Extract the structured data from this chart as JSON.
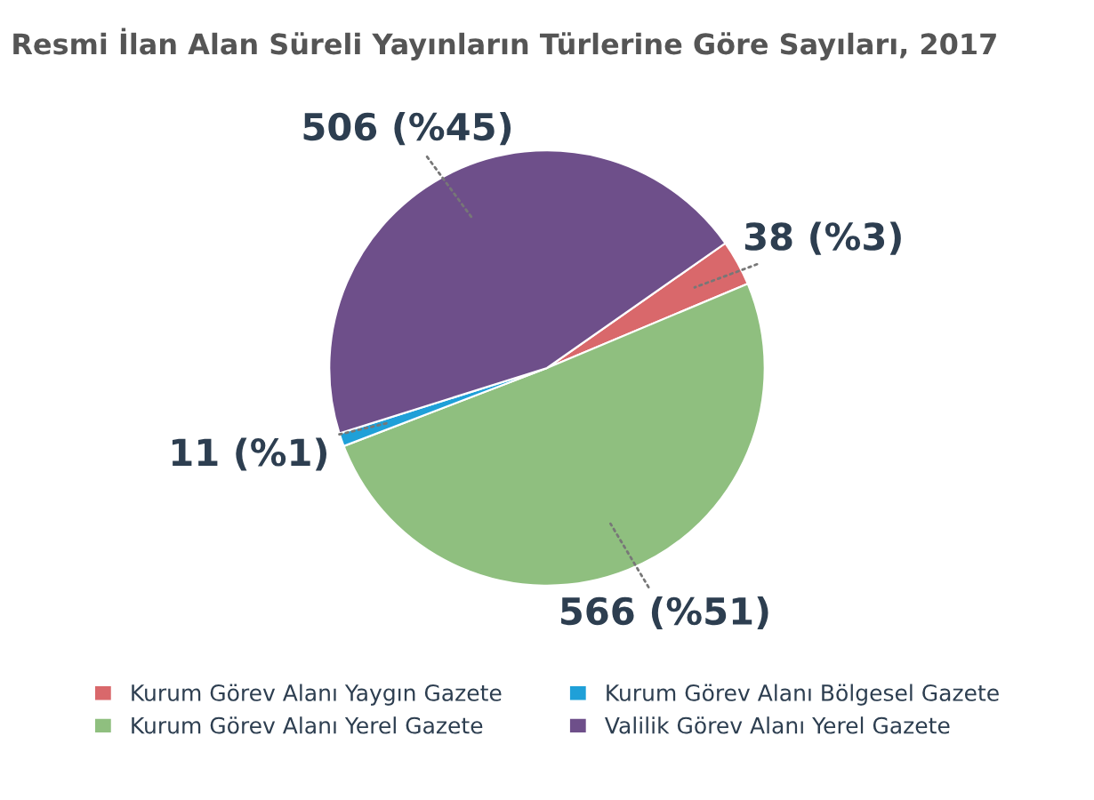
{
  "chart_data": {
    "type": "pie",
    "title": "Resmi İlan Alan Süreli Yayınların Türlerine Göre Sayıları, 2017",
    "categories": [
      "Kurum Görev Alanı Yaygın Gazete",
      "Kurum Görev Alanı Yerel Gazete",
      "Kurum Görev Alanı Bölgesel Gazete",
      "Valilik Görev Alanı Yerel Gazete"
    ],
    "values": [
      38,
      566,
      11,
      506
    ],
    "value_labels": [
      "38 (%3)",
      "566 (%51)",
      "11 (%1)",
      "506 (%45)"
    ],
    "colors": [
      "#d9686b",
      "#8fbf7f",
      "#1fa0d8",
      "#6e4f8a"
    ],
    "legend": "bottom"
  }
}
